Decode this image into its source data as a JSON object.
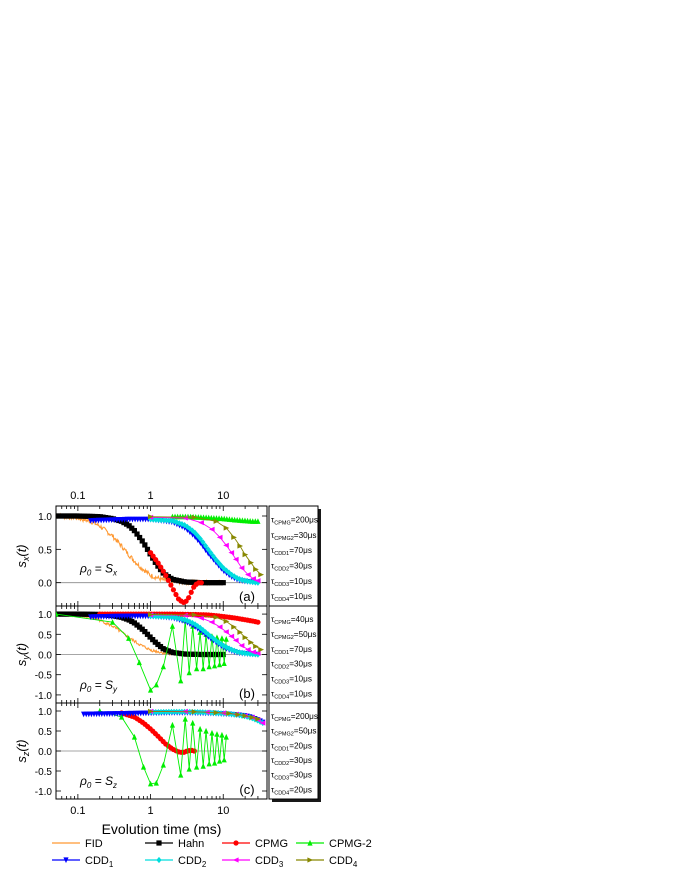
{
  "chart_data": {
    "type": "line",
    "xscale": "log",
    "xlim": [
      0.05,
      40
    ],
    "xlabel": "Evolution time (ms)",
    "xticks": [
      0.1,
      1,
      10
    ],
    "tick_labels_x": [
      "0.1",
      "1",
      "10"
    ],
    "colors": {
      "FID": "#ff9933",
      "Hahn": "#000000",
      "CPMG": "#ff0000",
      "CPMG-2": "#00ee00",
      "CDD1": "#0000ff",
      "CDD2": "#00dddd",
      "CDD3": "#ff00ff",
      "CDD4": "#888800"
    },
    "legend": [
      {
        "key": "FID",
        "text": "FID",
        "sub": ""
      },
      {
        "key": "Hahn",
        "text": "Hahn",
        "sub": ""
      },
      {
        "key": "CPMG",
        "text": "CPMG",
        "sub": ""
      },
      {
        "key": "CPMG-2",
        "text": "CPMG-2",
        "sub": ""
      },
      {
        "key": "CDD1",
        "text": "CDD",
        "sub": "1"
      },
      {
        "key": "CDD2",
        "text": "CDD",
        "sub": "2"
      },
      {
        "key": "CDD3",
        "text": "CDD",
        "sub": "3"
      },
      {
        "key": "CDD4",
        "text": "CDD",
        "sub": "4"
      }
    ],
    "panels": [
      {
        "id": "a",
        "label": "(a)",
        "ylabel_main": "s",
        "ylabel_sub": "x",
        "ylabel_tail": "(t)",
        "ylim": [
          -0.35,
          1.15
        ],
        "yticks": [
          1.0,
          0.5,
          0.0
        ],
        "ytick_labels": [
          "1.0",
          "0.5",
          "0.0"
        ],
        "init_main": "ρ",
        "init_sub": "0",
        "init_eq": " = S",
        "init_eqsub": "x",
        "taus": [
          {
            "name": "CPMG",
            "value": "=200μs"
          },
          {
            "name": "CPMG2",
            "value": "=30μs"
          },
          {
            "name": "CDD1",
            "value": "=70μs"
          },
          {
            "name": "CDD2",
            "value": "=30μs"
          },
          {
            "name": "CDD3",
            "value": "=10μs"
          },
          {
            "name": "CDD4",
            "value": "=10μs"
          }
        ],
        "series": [
          {
            "key": "FID",
            "style": "noisy",
            "x": [
              0.05,
              0.07,
              0.1,
              0.15,
              0.2,
              0.3,
              0.4,
              0.5,
              0.7,
              1.0,
              1.5,
              2.0,
              3.0,
              5.0,
              10.0
            ],
            "y": [
              1.0,
              0.99,
              0.97,
              0.92,
              0.85,
              0.7,
              0.55,
              0.42,
              0.25,
              0.11,
              0.04,
              0.02,
              0.01,
              0.0,
              0.0
            ]
          },
          {
            "key": "Hahn",
            "style": "dense",
            "x": [
              0.05,
              0.1,
              0.2,
              0.3,
              0.4,
              0.5,
              0.6,
              0.8,
              1.0,
              1.2,
              1.5,
              2.0,
              3.0,
              5.0,
              10.0
            ],
            "y": [
              1.0,
              1.0,
              0.99,
              0.96,
              0.92,
              0.86,
              0.78,
              0.6,
              0.42,
              0.28,
              0.14,
              0.05,
              0.01,
              0.0,
              0.0
            ]
          },
          {
            "key": "CPMG",
            "style": "dense",
            "x": [
              1.0,
              1.3,
              1.6,
              2.0,
              2.4,
              2.8,
              3.2,
              3.6,
              4.0,
              4.5,
              5.0
            ],
            "y": [
              0.45,
              0.28,
              0.12,
              -0.08,
              -0.24,
              -0.3,
              -0.27,
              -0.15,
              -0.05,
              0.0,
              0.0
            ]
          },
          {
            "key": "CPMG-2",
            "style": "dense",
            "x": [
              2.0,
              3.0,
              5.0,
              10.0,
              15.0,
              20.0,
              25.0,
              30.0
            ],
            "y": [
              0.99,
              0.99,
              0.98,
              0.96,
              0.94,
              0.93,
              0.92,
              0.92
            ]
          },
          {
            "key": "CDD1",
            "style": "dense",
            "x": [
              0.15,
              0.5,
              1.0,
              2.0,
              3.0,
              4.0,
              5.0,
              6.0,
              8.0,
              10.0,
              13.0,
              16.0,
              20.0,
              25.0,
              30.0
            ],
            "y": [
              0.93,
              0.95,
              0.95,
              0.91,
              0.82,
              0.7,
              0.58,
              0.46,
              0.3,
              0.18,
              0.09,
              0.04,
              0.02,
              0.01,
              0.0
            ]
          },
          {
            "key": "CDD2",
            "style": "dense",
            "x": [
              1.0,
              2.0,
              3.0,
              4.0,
              5.0,
              6.0,
              8.0,
              10.0,
              13.0,
              16.0,
              20.0,
              25.0,
              30.0
            ],
            "y": [
              0.95,
              0.93,
              0.86,
              0.76,
              0.64,
              0.52,
              0.34,
              0.22,
              0.12,
              0.06,
              0.03,
              0.01,
              0.0
            ]
          },
          {
            "key": "CDD3",
            "style": "markers",
            "x": [
              1.0,
              3.0,
              5.0,
              7.0,
              9.0,
              11.0,
              13.0,
              15.0,
              18.0,
              22.0,
              26.0,
              30.0
            ],
            "y": [
              0.98,
              0.97,
              0.9,
              0.8,
              0.68,
              0.56,
              0.45,
              0.35,
              0.22,
              0.12,
              0.06,
              0.03
            ]
          },
          {
            "key": "CDD4",
            "style": "markers",
            "x": [
              1.0,
              4.0,
              8.0,
              11.0,
              14.0,
              17.0,
              20.0,
              24.0,
              28.0,
              33.0
            ],
            "y": [
              0.99,
              0.98,
              0.92,
              0.82,
              0.68,
              0.55,
              0.42,
              0.3,
              0.2,
              0.12
            ]
          }
        ]
      },
      {
        "id": "b",
        "label": "(b)",
        "ylabel_main": "s",
        "ylabel_sub": "y",
        "ylabel_tail": "(t)",
        "ylim": [
          -1.2,
          1.2
        ],
        "yticks": [
          1.0,
          0.5,
          0.0,
          -0.5,
          -1.0
        ],
        "ytick_labels": [
          "1.0",
          "0.5",
          "0.0",
          "-0.5",
          "-1.0"
        ],
        "init_main": "ρ",
        "init_sub": "0",
        "init_eq": " = S",
        "init_eqsub": "y",
        "taus": [
          {
            "name": "CPMG",
            "value": "=40μs"
          },
          {
            "name": "CPMG2",
            "value": "=50μs"
          },
          {
            "name": "CDD1",
            "value": "=70μs"
          },
          {
            "name": "CDD2",
            "value": "=30μs"
          },
          {
            "name": "CDD3",
            "value": "=10μs"
          },
          {
            "name": "CDD4",
            "value": "=10μs"
          }
        ],
        "series": [
          {
            "key": "FID",
            "style": "noisy",
            "x": [
              0.05,
              0.07,
              0.1,
              0.15,
              0.2,
              0.3,
              0.4,
              0.5,
              0.7,
              1.0,
              1.5,
              2.0,
              3.0,
              5.0,
              10.0
            ],
            "y": [
              1.0,
              0.99,
              0.97,
              0.92,
              0.85,
              0.7,
              0.55,
              0.42,
              0.25,
              0.11,
              0.04,
              0.02,
              0.01,
              0.0,
              0.0
            ]
          },
          {
            "key": "Hahn",
            "style": "dense",
            "x": [
              0.05,
              0.1,
              0.2,
              0.3,
              0.4,
              0.5,
              0.6,
              0.8,
              1.0,
              1.2,
              1.5,
              2.0,
              3.0,
              5.0,
              10.0
            ],
            "y": [
              1.0,
              1.0,
              0.99,
              0.96,
              0.92,
              0.86,
              0.78,
              0.6,
              0.42,
              0.28,
              0.14,
              0.05,
              0.01,
              0.0,
              0.0
            ]
          },
          {
            "key": "CPMG",
            "style": "dense",
            "x": [
              0.2,
              1.0,
              2.0,
              4.0,
              6.0,
              8.0,
              10.0,
              15.0,
              20.0,
              25.0,
              30.0
            ],
            "y": [
              1.0,
              1.0,
              1.0,
              0.99,
              0.98,
              0.96,
              0.94,
              0.9,
              0.86,
              0.83,
              0.8
            ]
          },
          {
            "key": "CPMG-2",
            "style": "osc",
            "x": [
              0.05,
              0.3,
              0.5,
              0.7,
              1.0,
              1.2,
              1.5,
              2.0,
              2.6,
              3.0,
              3.4,
              3.8,
              4.3,
              4.8,
              5.3,
              5.8,
              6.4,
              7.0,
              7.6,
              8.2,
              8.9,
              9.6,
              10.3,
              11.0
            ],
            "y": [
              1.0,
              0.8,
              0.4,
              -0.2,
              -0.88,
              -0.75,
              -0.3,
              0.7,
              -0.65,
              0.85,
              -0.45,
              0.7,
              -0.35,
              0.55,
              -0.35,
              0.5,
              -0.3,
              0.45,
              -0.28,
              0.42,
              -0.25,
              0.4,
              -0.22,
              0.38
            ]
          },
          {
            "key": "CDD1",
            "style": "dense",
            "x": [
              0.15,
              0.5,
              1.0,
              2.0,
              3.0,
              4.0,
              5.0,
              6.0,
              8.0,
              10.0,
              13.0,
              16.0,
              20.0,
              25.0,
              30.0
            ],
            "y": [
              0.93,
              0.95,
              0.95,
              0.91,
              0.82,
              0.7,
              0.58,
              0.46,
              0.3,
              0.18,
              0.09,
              0.04,
              0.02,
              0.01,
              0.0
            ]
          },
          {
            "key": "CDD2",
            "style": "dense",
            "x": [
              1.0,
              2.0,
              3.0,
              4.0,
              5.0,
              6.0,
              8.0,
              10.0,
              13.0,
              16.0,
              20.0,
              25.0,
              30.0
            ],
            "y": [
              0.95,
              0.93,
              0.86,
              0.76,
              0.64,
              0.52,
              0.34,
              0.22,
              0.12,
              0.06,
              0.03,
              0.01,
              0.0
            ]
          },
          {
            "key": "CDD3",
            "style": "markers",
            "x": [
              1.0,
              3.0,
              5.0,
              7.0,
              9.0,
              11.0,
              13.0,
              15.0,
              18.0,
              22.0,
              26.0,
              30.0
            ],
            "y": [
              0.98,
              0.97,
              0.9,
              0.8,
              0.68,
              0.56,
              0.45,
              0.35,
              0.22,
              0.12,
              0.06,
              0.03
            ]
          },
          {
            "key": "CDD4",
            "style": "markers",
            "x": [
              1.0,
              4.0,
              8.0,
              11.0,
              14.0,
              17.0,
              20.0,
              24.0,
              28.0,
              33.0
            ],
            "y": [
              0.99,
              0.98,
              0.92,
              0.82,
              0.68,
              0.55,
              0.42,
              0.3,
              0.2,
              0.12
            ]
          }
        ]
      },
      {
        "id": "c",
        "label": "(c)",
        "ylabel_main": "s",
        "ylabel_sub": "z",
        "ylabel_tail": "(t)",
        "ylim": [
          -1.2,
          1.2
        ],
        "yticks": [
          1.0,
          0.5,
          0.0,
          -0.5,
          -1.0
        ],
        "ytick_labels": [
          "1.0",
          "0.5",
          "0.0",
          "-0.5",
          "-1.0"
        ],
        "init_main": "ρ",
        "init_sub": "0",
        "init_eq": " = S",
        "init_eqsub": "z",
        "taus": [
          {
            "name": "CPMG",
            "value": "=200μs"
          },
          {
            "name": "CPMG2",
            "value": "=50μs"
          },
          {
            "name": "CDD1",
            "value": "=20μs"
          },
          {
            "name": "CDD2",
            "value": "=30μs"
          },
          {
            "name": "CDD3",
            "value": "=30μs"
          },
          {
            "name": "CDD4",
            "value": "=20μs"
          }
        ],
        "series": [
          {
            "key": "CPMG",
            "style": "dense",
            "x": [
              0.4,
              0.6,
              0.8,
              1.0,
              1.3,
              1.6,
              2.0,
              2.4,
              2.8,
              3.2,
              3.6,
              4.0
            ],
            "y": [
              0.95,
              0.85,
              0.7,
              0.55,
              0.35,
              0.18,
              0.05,
              -0.02,
              -0.04,
              0.0,
              0.02,
              0.0
            ]
          },
          {
            "key": "CPMG-2",
            "style": "osc",
            "x": [
              0.2,
              0.4,
              0.6,
              0.8,
              1.0,
              1.2,
              1.5,
              2.0,
              2.6,
              3.0,
              3.4,
              3.8,
              4.3,
              4.8,
              5.3,
              5.8,
              6.4,
              7.0,
              7.6,
              8.2,
              8.9,
              9.6,
              10.3,
              11.0
            ],
            "y": [
              1.0,
              0.85,
              0.35,
              -0.4,
              -0.82,
              -0.8,
              -0.35,
              0.65,
              -0.6,
              0.8,
              -0.45,
              0.7,
              -0.4,
              0.55,
              -0.38,
              0.5,
              -0.32,
              0.45,
              -0.3,
              0.42,
              -0.25,
              0.4,
              -0.22,
              0.35
            ]
          },
          {
            "key": "CDD1",
            "style": "dense",
            "x": [
              0.12,
              0.3,
              0.6,
              1.0,
              2.0,
              3.0,
              5.0,
              8.0,
              12.0,
              16.0,
              20.0,
              25.0,
              30.0,
              35.0
            ],
            "y": [
              0.92,
              0.93,
              0.94,
              0.95,
              0.96,
              0.96,
              0.95,
              0.94,
              0.92,
              0.9,
              0.88,
              0.84,
              0.78,
              0.72
            ]
          },
          {
            "key": "CDD2",
            "style": "dense",
            "x": [
              1.0,
              2.0,
              3.0,
              5.0,
              8.0,
              12.0,
              16.0,
              20.0,
              25.0,
              30.0,
              35.0
            ],
            "y": [
              0.97,
              0.98,
              0.98,
              0.97,
              0.95,
              0.93,
              0.9,
              0.87,
              0.82,
              0.76,
              0.7
            ]
          },
          {
            "key": "CDD3",
            "style": "markers",
            "x": [
              1.0,
              3.0,
              6.0,
              10.0,
              15.0,
              20.0,
              25.0,
              30.0,
              35.0
            ],
            "y": [
              0.99,
              0.99,
              0.97,
              0.95,
              0.92,
              0.88,
              0.84,
              0.78,
              0.7
            ]
          },
          {
            "key": "CDD4",
            "style": "markers",
            "x": [
              1.0,
              4.0,
              8.0,
              12.0,
              16.0,
              20.0,
              25.0,
              30.0
            ],
            "y": [
              0.99,
              0.98,
              0.96,
              0.94,
              0.91,
              0.88,
              0.84,
              0.8
            ]
          }
        ]
      }
    ]
  }
}
